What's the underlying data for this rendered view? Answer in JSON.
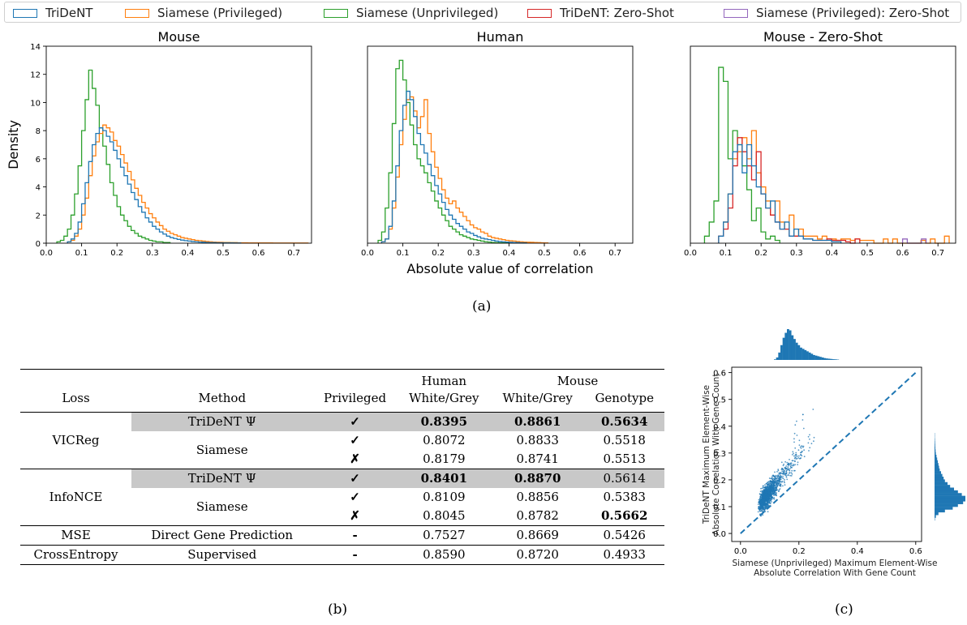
{
  "legend": [
    {
      "label": "TriDeNT",
      "color": "#1f77b4"
    },
    {
      "label": "Siamese (Privileged)",
      "color": "#ff7f0e"
    },
    {
      "label": "Siamese (Unprivileged)",
      "color": "#2ca02c"
    },
    {
      "label": "TriDeNT: Zero-Shot",
      "color": "#d62728"
    },
    {
      "label": "Siamese (Privileged): Zero-Shot",
      "color": "#9467bd"
    }
  ],
  "captions": {
    "a": "(a)",
    "b": "(b)",
    "c": "(c)"
  },
  "chart_data": [
    {
      "type": "histogram",
      "title": "Mouse",
      "ylabel": "Density",
      "xlabel": "",
      "xlim": [
        0,
        0.75
      ],
      "ylim": [
        0,
        14
      ],
      "xticks": [
        "0.0",
        "0.1",
        "0.2",
        "0.3",
        "0.4",
        "0.5",
        "0.6",
        "0.7"
      ],
      "yticks": [
        "0",
        "2",
        "4",
        "6",
        "8",
        "10",
        "12",
        "14"
      ],
      "series": [
        {
          "name": "Siamese (Unprivileged)",
          "color": "#2ca02c",
          "bin_width": 0.01,
          "x_start": 0.03,
          "values": [
            0.1,
            0.2,
            0.5,
            1.0,
            2.0,
            3.5,
            5.5,
            8.0,
            10.2,
            12.3,
            11.0,
            9.8,
            8.2,
            6.9,
            5.6,
            4.3,
            3.4,
            2.6,
            2.0,
            1.6,
            1.2,
            0.9,
            0.7,
            0.5,
            0.4,
            0.3,
            0.2,
            0.15,
            0.1,
            0.1,
            0.05,
            0.05
          ]
        },
        {
          "name": "Siamese (Privileged)",
          "color": "#ff7f0e",
          "bin_width": 0.01,
          "x_start": 0.06,
          "values": [
            0.1,
            0.2,
            0.5,
            1.0,
            2.0,
            3.2,
            4.8,
            6.2,
            7.2,
            7.8,
            8.4,
            8.2,
            7.9,
            7.3,
            6.9,
            6.3,
            5.7,
            5.1,
            4.5,
            3.9,
            3.4,
            2.9,
            2.5,
            2.1,
            1.8,
            1.5,
            1.25,
            1.0,
            0.85,
            0.7,
            0.6,
            0.5,
            0.4,
            0.35,
            0.3,
            0.25,
            0.2,
            0.18,
            0.15,
            0.12,
            0.1,
            0.08,
            0.07,
            0.06,
            0.05,
            0.05,
            0.04,
            0.04,
            0.03,
            0.03,
            0.03,
            0.02,
            0.02,
            0.02,
            0.02,
            0.02,
            0.02,
            0.02,
            0.01,
            0.01,
            0.01,
            0.01,
            0.01,
            0.01,
            0.01,
            0.01,
            0.01,
            0.01
          ]
        },
        {
          "name": "TriDeNT",
          "color": "#1f77b4",
          "bin_width": 0.01,
          "x_start": 0.06,
          "values": [
            0.1,
            0.3,
            0.7,
            1.5,
            2.8,
            4.3,
            5.8,
            7.0,
            7.8,
            8.2,
            8.0,
            7.6,
            7.2,
            6.6,
            6.0,
            5.4,
            4.8,
            4.2,
            3.6,
            3.1,
            2.6,
            2.2,
            1.8,
            1.5,
            1.2,
            1.0,
            0.8,
            0.65,
            0.5,
            0.4,
            0.33,
            0.27,
            0.22,
            0.18,
            0.15,
            0.12,
            0.1,
            0.08,
            0.07,
            0.05,
            0.04,
            0.04,
            0.03,
            0.03,
            0.02,
            0.02,
            0.02,
            0.01,
            0.01
          ]
        }
      ]
    },
    {
      "type": "histogram",
      "title": "Human",
      "ylabel": "",
      "xlabel": "Absolute value of correlation",
      "xlim": [
        0,
        0.75
      ],
      "ylim": [
        0,
        14
      ],
      "xticks": [
        "0.0",
        "0.1",
        "0.2",
        "0.3",
        "0.4",
        "0.5",
        "0.6",
        "0.7"
      ],
      "series": [
        {
          "name": "Siamese (Unprivileged)",
          "color": "#2ca02c",
          "bin_width": 0.01,
          "x_start": 0.03,
          "values": [
            0.2,
            0.8,
            2.5,
            5.0,
            8.5,
            12.4,
            13.0,
            11.6,
            10.0,
            8.4,
            7.0,
            6.0,
            5.5,
            5.0,
            4.3,
            3.7,
            3.0,
            2.5,
            2.0,
            1.6,
            1.2,
            1.0,
            0.8,
            0.6,
            0.5,
            0.4,
            0.3,
            0.25,
            0.2,
            0.15,
            0.1,
            0.08,
            0.05,
            0.04,
            0.03,
            0.02,
            0.02
          ]
        },
        {
          "name": "Siamese (Privileged)",
          "color": "#ff7f0e",
          "bin_width": 0.01,
          "x_start": 0.04,
          "values": [
            0.1,
            0.3,
            1.0,
            2.5,
            4.7,
            7.0,
            8.8,
            10.2,
            10.4,
            9.4,
            8.2,
            9.0,
            10.2,
            7.8,
            6.5,
            5.4,
            4.6,
            3.8,
            3.2,
            2.8,
            3.0,
            2.5,
            2.2,
            1.9,
            1.6,
            1.3,
            1.1,
            1.0,
            0.8,
            0.7,
            0.5,
            0.4,
            0.35,
            0.3,
            0.25,
            0.2,
            0.17,
            0.15,
            0.12,
            0.1,
            0.08,
            0.07,
            0.06,
            0.05,
            0.04,
            0.03,
            0.02
          ]
        },
        {
          "name": "TriDeNT",
          "color": "#1f77b4",
          "bin_width": 0.01,
          "x_start": 0.04,
          "values": [
            0.1,
            0.3,
            1.2,
            3.0,
            5.5,
            8.0,
            9.8,
            10.8,
            10.2,
            9.0,
            7.8,
            7.0,
            6.4,
            5.6,
            4.8,
            4.1,
            3.5,
            2.9,
            2.4,
            2.0,
            1.7,
            1.4,
            1.2,
            1.0,
            0.8,
            0.7,
            0.55,
            0.45,
            0.35,
            0.3,
            0.25,
            0.2,
            0.15,
            0.12,
            0.1,
            0.08,
            0.06,
            0.05,
            0.04,
            0.03,
            0.02
          ]
        }
      ]
    },
    {
      "type": "histogram",
      "title": "Mouse - Zero-Shot",
      "ylabel": "",
      "xlabel": "",
      "xlim": [
        0,
        0.75
      ],
      "ylim": [
        0,
        14
      ],
      "xticks": [
        "0.0",
        "0.1",
        "0.2",
        "0.3",
        "0.4",
        "0.5",
        "0.6",
        "0.7"
      ],
      "series": [
        {
          "name": "Siamese (Unprivileged)",
          "color": "#2ca02c",
          "bin_width": 0.0133,
          "x_start": 0.04,
          "values": [
            0.5,
            1.5,
            3.0,
            12.5,
            11.5,
            6.0,
            8.0,
            7.0,
            5.5,
            3.8,
            1.6,
            2.5,
            0.8,
            0.3,
            0.5,
            0.2
          ]
        },
        {
          "name": "Siamese (Privileged)",
          "color": "#ff7f0e",
          "bin_width": 0.0133,
          "x_start": 0.08,
          "values": [
            0.5,
            1.5,
            3.5,
            6.0,
            6.5,
            7.5,
            6.0,
            8.0,
            5.0,
            4.0,
            3.0,
            2.0,
            3.0,
            1.5,
            1.0,
            2.0,
            0.5,
            1.0,
            0.5,
            0.5,
            0.5,
            0.3,
            0.5,
            0.3,
            0.3,
            0.2,
            0.3,
            0.3,
            0.2,
            0.3,
            0.2,
            0.2,
            0.2,
            0.0,
            0.0,
            0.3,
            0.0,
            0.3,
            0.0,
            0.0,
            0.0,
            0.0,
            0.0,
            0.2,
            0.0,
            0.3,
            0.0,
            0.0,
            0.5
          ]
        },
        {
          "name": "TriDeNT: Zero-Shot",
          "color": "#d62728",
          "bin_width": 0.0133,
          "x_start": 0.08,
          "values": [
            0.5,
            1.0,
            2.5,
            5.5,
            7.5,
            6.5,
            5.5,
            4.5,
            6.5,
            3.5,
            2.5,
            2.0,
            1.5,
            1.0,
            1.0,
            0.5,
            0.5,
            0.5,
            0.3,
            0.3,
            0.2,
            0.2,
            0.2,
            0.3,
            0.2,
            0.2,
            0.2,
            0.1,
            0.0,
            0.3
          ]
        },
        {
          "name": "Siamese (Privileged): Zero-Shot",
          "color": "#9467bd",
          "bin_width": 0.0133,
          "x_start": 0.6,
          "values": [
            0.3,
            0.0,
            0.0,
            0.0,
            0.3
          ]
        },
        {
          "name": "TriDeNT",
          "color": "#1f77b4",
          "bin_width": 0.0133,
          "x_start": 0.08,
          "values": [
            0.5,
            1.5,
            3.5,
            6.5,
            7.0,
            5.0,
            7.0,
            5.5,
            4.0,
            3.5,
            2.5,
            3.0,
            1.5,
            1.0,
            1.5,
            0.5,
            1.0,
            0.5,
            0.3,
            0.3,
            0.2,
            0.2,
            0.2,
            0.2,
            0.1,
            0.1
          ]
        }
      ]
    },
    {
      "type": "table",
      "headers_top": [
        "",
        "",
        "",
        "Human",
        "Mouse",
        ""
      ],
      "headers": [
        "Loss",
        "Method",
        "Privileged",
        "White/Grey",
        "White/Grey",
        "Genotype"
      ],
      "groups": [
        {
          "loss": "VICReg",
          "rows": [
            {
              "method": "TriDeNT Ψ",
              "privileged": "✓",
              "human_wg": "0.8395",
              "mouse_wg": "0.8861",
              "genotype": "0.5634",
              "shaded": true,
              "bold": [
                true,
                true,
                true
              ]
            },
            {
              "method": "Siamese",
              "privileged": "✓",
              "human_wg": "0.8072",
              "mouse_wg": "0.8833",
              "genotype": "0.5518",
              "bold": [
                false,
                false,
                false
              ]
            },
            {
              "method": "",
              "privileged": "✗",
              "human_wg": "0.8179",
              "mouse_wg": "0.8741",
              "genotype": "0.5513",
              "bold": [
                false,
                false,
                false
              ]
            }
          ]
        },
        {
          "loss": "InfoNCE",
          "rows": [
            {
              "method": "TriDeNT Ψ",
              "privileged": "✓",
              "human_wg": "0.8401",
              "mouse_wg": "0.8870",
              "genotype": "0.5614",
              "shaded": true,
              "bold": [
                true,
                true,
                false
              ]
            },
            {
              "method": "Siamese",
              "privileged": "✓",
              "human_wg": "0.8109",
              "mouse_wg": "0.8856",
              "genotype": "0.5383",
              "bold": [
                false,
                false,
                false
              ]
            },
            {
              "method": "",
              "privileged": "✗",
              "human_wg": "0.8045",
              "mouse_wg": "0.8782",
              "genotype": "0.5662",
              "bold": [
                false,
                false,
                true
              ]
            }
          ]
        },
        {
          "loss": "MSE",
          "rows": [
            {
              "method": "Direct Gene Prediction",
              "privileged": "-",
              "human_wg": "0.7527",
              "mouse_wg": "0.8669",
              "genotype": "0.5426",
              "bold": [
                false,
                false,
                false
              ]
            }
          ]
        },
        {
          "loss": "CrossEntropy",
          "rows": [
            {
              "method": "Supervised",
              "privileged": "-",
              "human_wg": "0.8590",
              "mouse_wg": "0.8720",
              "genotype": "0.4933",
              "bold": [
                false,
                false,
                false
              ]
            }
          ]
        }
      ]
    },
    {
      "type": "scatter",
      "xlabel": [
        "Siamese (Unprivileged) Maximum Element-Wise",
        "Absolute Correlation With Gene Count"
      ],
      "ylabel": [
        "TriDeNT Maximum Element-Wise",
        "Absolute Correlation With Gene Count"
      ],
      "xlim": [
        -0.03,
        0.62
      ],
      "ylim": [
        -0.03,
        0.62
      ],
      "xticks": [
        "0.0",
        "0.2",
        "0.4",
        "0.6"
      ],
      "yticks": [
        "0.0",
        "0.1",
        "0.2",
        "0.3",
        "0.4",
        "0.5",
        "0.6"
      ],
      "color": "#1f77b4",
      "reference_line": {
        "from": [
          0,
          0
        ],
        "to": [
          0.6,
          0.6
        ],
        "style": "dashed"
      },
      "top_marginal_density": [
        0.5,
        2,
        6,
        12,
        18,
        22,
        25,
        24,
        20,
        17,
        14,
        12,
        10,
        9,
        8,
        7,
        6,
        5,
        4,
        3.5,
        3,
        2.5,
        2,
        1.5,
        1.2,
        1,
        0.8,
        0.6,
        0.5,
        0.3
      ],
      "right_marginal_density": [
        0.3,
        1,
        3,
        8,
        14,
        18,
        22,
        25,
        24,
        21,
        18,
        15,
        12,
        10,
        8,
        7,
        6,
        5,
        4,
        3.5,
        3,
        2.5,
        2,
        1.5,
        1,
        0.8,
        0.6,
        0.5,
        0.4,
        0.3,
        0.2,
        0.2
      ]
    }
  ]
}
